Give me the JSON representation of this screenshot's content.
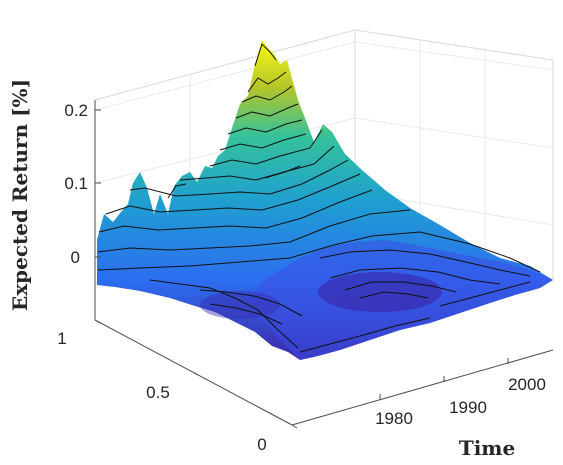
{
  "chart_data": {
    "type": "surface",
    "title": "",
    "xlabel": "Time",
    "ylabel": "",
    "zlabel": "Expected Return [%]",
    "x_ticks": [
      "1980",
      "1990",
      "2000"
    ],
    "y_ticks": [
      "0",
      "0.5",
      "1"
    ],
    "z_ticks": [
      "0.2",
      "0.1",
      "0"
    ],
    "x_range": [
      1963,
      2008
    ],
    "y_range": [
      0,
      1
    ],
    "z_range": [
      -0.06,
      0.22
    ],
    "grid": true,
    "colormap": "parula",
    "colors": {
      "low": "#3e26a8",
      "mid": "#1fa0d0",
      "high": "#f9fb15"
    },
    "surface_features": [
      {
        "kind": "peak",
        "x": 1974,
        "y": 0.95,
        "z": 0.235
      },
      {
        "kind": "ridge",
        "x": 1966,
        "y": 0.9,
        "z": 0.09
      },
      {
        "kind": "trough",
        "x": 1986,
        "y": 0.5,
        "z": -0.05
      },
      {
        "kind": "trough",
        "x": 1972,
        "y": 0.25,
        "z": -0.04
      }
    ]
  }
}
